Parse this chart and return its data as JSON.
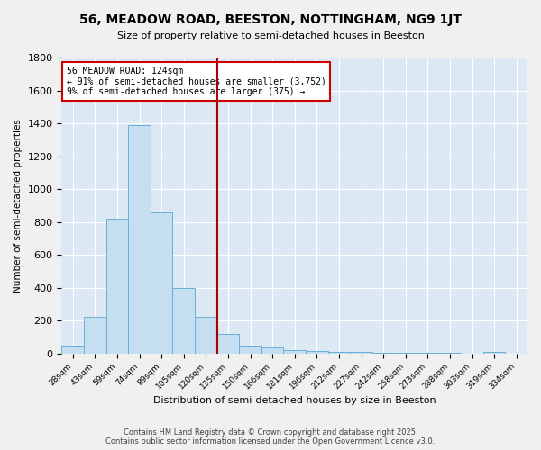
{
  "title": "56, MEADOW ROAD, BEESTON, NOTTINGHAM, NG9 1JT",
  "subtitle": "Size of property relative to semi-detached houses in Beeston",
  "xlabel": "Distribution of semi-detached houses by size in Beeston",
  "ylabel": "Number of semi-detached properties",
  "bin_labels": [
    "28sqm",
    "43sqm",
    "59sqm",
    "74sqm",
    "89sqm",
    "105sqm",
    "120sqm",
    "135sqm",
    "150sqm",
    "166sqm",
    "181sqm",
    "196sqm",
    "212sqm",
    "227sqm",
    "242sqm",
    "258sqm",
    "273sqm",
    "288sqm",
    "303sqm",
    "319sqm",
    "334sqm"
  ],
  "bar_values": [
    50,
    220,
    820,
    1390,
    860,
    400,
    220,
    120,
    50,
    35,
    20,
    15,
    10,
    8,
    5,
    3,
    2,
    1,
    0,
    10,
    0
  ],
  "bar_color": "#c5dff0",
  "bar_edge_color": "#6aafd6",
  "vline_bin_index": 6,
  "annotation_line1": "56 MEADOW ROAD: 124sqm",
  "annotation_line2": "← 91% of semi-detached houses are smaller (3,752)",
  "annotation_line3": "9% of semi-detached houses are larger (375) →",
  "annotation_box_color": "#ffffff",
  "annotation_box_edge_color": "#cc0000",
  "vline_color": "#aa0000",
  "bg_color": "#dce9f5",
  "fig_bg_color": "#f0f0f0",
  "footer_line1": "Contains HM Land Registry data © Crown copyright and database right 2025.",
  "footer_line2": "Contains public sector information licensed under the Open Government Licence v3.0.",
  "ylim": [
    0,
    1800
  ],
  "yticks": [
    0,
    200,
    400,
    600,
    800,
    1000,
    1200,
    1400,
    1600,
    1800
  ]
}
